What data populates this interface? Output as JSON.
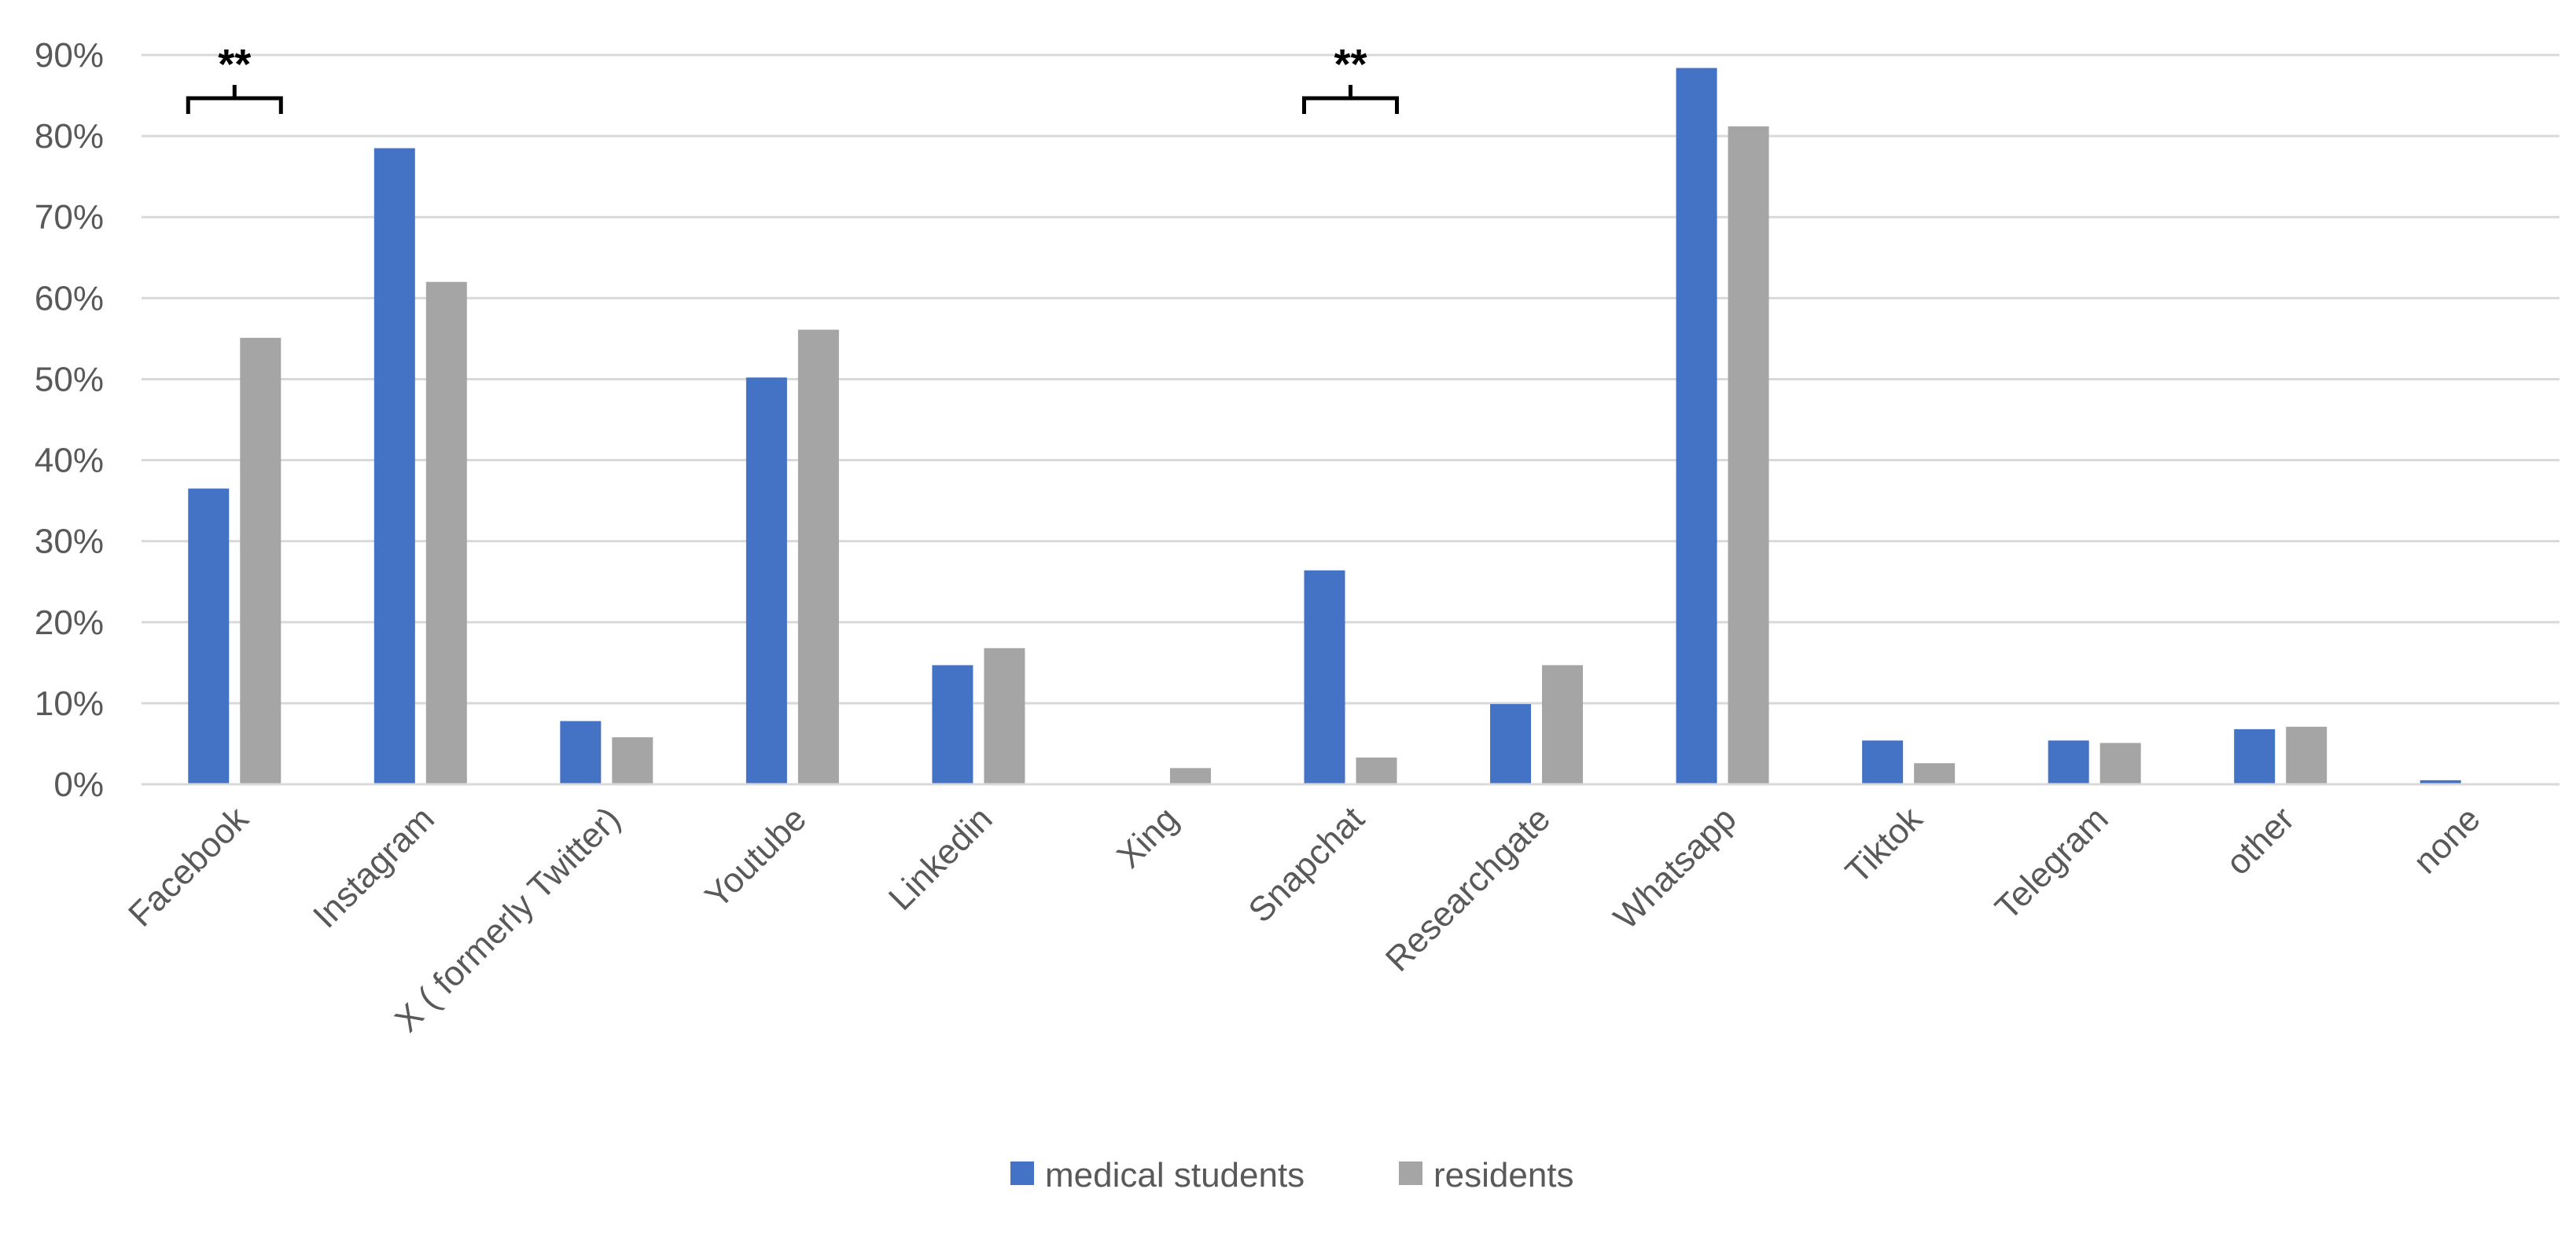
{
  "chart_data": {
    "type": "bar",
    "categories": [
      "Facebook",
      "Instagram",
      "X ( formerly Twitter)",
      "Youtube",
      "Linkedin",
      "Xing",
      "Snapchat",
      "Researchgate",
      "Whatsapp",
      "Tiktok",
      "Telegram",
      "other",
      "none"
    ],
    "series": [
      {
        "name": "medical students",
        "values": [
          36.5,
          78.5,
          7.8,
          50.2,
          14.7,
          0,
          26.4,
          9.9,
          88.4,
          5.4,
          5.4,
          6.8,
          0.5
        ]
      },
      {
        "name": "residents",
        "values": [
          55.1,
          62.0,
          5.8,
          56.1,
          16.8,
          2.0,
          3.3,
          14.7,
          81.2,
          2.6,
          5.1,
          7.1,
          0
        ]
      }
    ],
    "colors": {
      "medical students": "#4472c4",
      "residents": "#a5a5a5"
    },
    "ylim": [
      0,
      90
    ],
    "yticks": [
      "0%",
      "10%",
      "20%",
      "30%",
      "40%",
      "50%",
      "60%",
      "70%",
      "80%",
      "90%"
    ],
    "grid": true,
    "legend_position": "bottom",
    "annotations": [
      {
        "category": "Facebook",
        "text": "**"
      },
      {
        "category": "Snapchat",
        "text": "**"
      }
    ]
  }
}
